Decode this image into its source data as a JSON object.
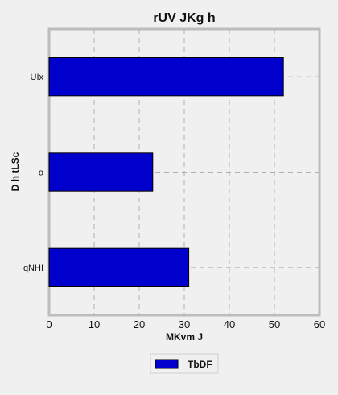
{
  "chart_data": {
    "type": "bar",
    "orientation": "horizontal",
    "title": "rUV  JKg  h",
    "xlabel": "MKvm J",
    "ylabel": "D h tLSc",
    "categories": [
      "UIx",
      "o",
      "qNHI"
    ],
    "series": [
      {
        "name": "TbDF",
        "values": [
          52,
          23,
          31
        ]
      }
    ],
    "xlim": [
      0,
      60
    ],
    "xticks": [
      0,
      10,
      20,
      30,
      40,
      50,
      60
    ],
    "grid": true,
    "legend": "bottom-center",
    "colors": {
      "bar": "#0000cc",
      "bar_edge": "#000000",
      "grid": "#b0b0b0",
      "frame": "#bdbdbd",
      "background": "#f0f0f0"
    }
  }
}
